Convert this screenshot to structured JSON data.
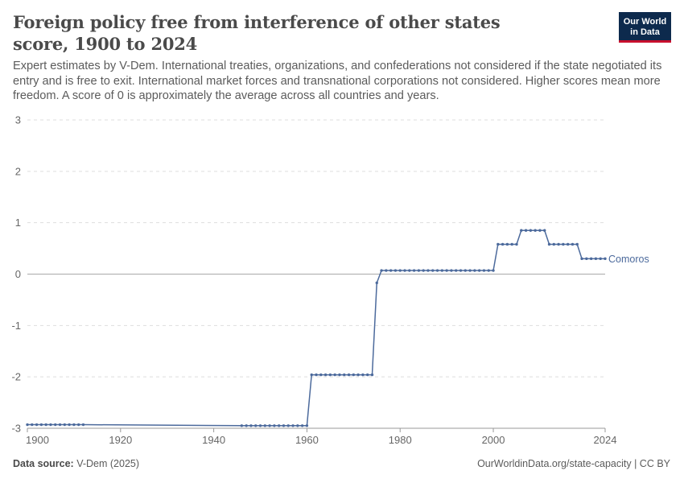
{
  "header": {
    "title": "Foreign policy free from interference of other states score, 1900 to 2024",
    "subtitle": "Expert estimates by V-Dem. International treaties, organizations, and confederations not considered if the state negotiated its entry and is free to exit. International market forces and transnational corporations not considered. Higher scores mean more freedom. A score of 0 is approximately the average across all countries and years.",
    "logo_line1": "Our World",
    "logo_line2": "in Data"
  },
  "footer": {
    "source_label": "Data source:",
    "source_value": "V-Dem (2025)",
    "link": "OurWorldinData.org/state-capacity | CC BY"
  },
  "colors": {
    "series": "#4c6a9c",
    "grid": "#dddddd",
    "zero_line": "#a8a8a8",
    "axis_text": "#666666",
    "logo_bg": "#0d2a4d",
    "logo_accent": "#c8102e"
  },
  "chart_data": {
    "type": "line",
    "title": "Foreign policy free from interference of other states score, 1900 to 2024",
    "xlabel": "",
    "ylabel": "",
    "xlim": [
      1900,
      2024
    ],
    "ylim": [
      -3,
      3
    ],
    "x_ticks": [
      1900,
      1920,
      1940,
      1960,
      1980,
      2000,
      2024
    ],
    "y_ticks": [
      3,
      2,
      1,
      0,
      -1,
      -2,
      -3
    ],
    "grid": true,
    "legend": "inline-right",
    "series": [
      {
        "name": "Comoros",
        "color": "#4c6a9c",
        "points": [
          [
            1900,
            -2.93
          ],
          [
            1901,
            -2.93
          ],
          [
            1902,
            -2.93
          ],
          [
            1903,
            -2.93
          ],
          [
            1904,
            -2.93
          ],
          [
            1905,
            -2.93
          ],
          [
            1906,
            -2.93
          ],
          [
            1907,
            -2.93
          ],
          [
            1908,
            -2.93
          ],
          [
            1909,
            -2.93
          ],
          [
            1910,
            -2.93
          ],
          [
            1911,
            -2.93
          ],
          [
            1912,
            -2.93
          ],
          [
            1946,
            -2.95
          ],
          [
            1947,
            -2.95
          ],
          [
            1948,
            -2.95
          ],
          [
            1949,
            -2.95
          ],
          [
            1950,
            -2.95
          ],
          [
            1951,
            -2.95
          ],
          [
            1952,
            -2.95
          ],
          [
            1953,
            -2.95
          ],
          [
            1954,
            -2.95
          ],
          [
            1955,
            -2.95
          ],
          [
            1956,
            -2.95
          ],
          [
            1957,
            -2.95
          ],
          [
            1958,
            -2.95
          ],
          [
            1959,
            -2.95
          ],
          [
            1960,
            -2.95
          ],
          [
            1961,
            -1.96
          ],
          [
            1962,
            -1.96
          ],
          [
            1963,
            -1.96
          ],
          [
            1964,
            -1.96
          ],
          [
            1965,
            -1.96
          ],
          [
            1966,
            -1.96
          ],
          [
            1967,
            -1.96
          ],
          [
            1968,
            -1.96
          ],
          [
            1969,
            -1.96
          ],
          [
            1970,
            -1.96
          ],
          [
            1971,
            -1.96
          ],
          [
            1972,
            -1.96
          ],
          [
            1973,
            -1.96
          ],
          [
            1974,
            -1.96
          ],
          [
            1975,
            -0.17
          ],
          [
            1976,
            0.07
          ],
          [
            1977,
            0.07
          ],
          [
            1978,
            0.07
          ],
          [
            1979,
            0.07
          ],
          [
            1980,
            0.07
          ],
          [
            1981,
            0.07
          ],
          [
            1982,
            0.07
          ],
          [
            1983,
            0.07
          ],
          [
            1984,
            0.07
          ],
          [
            1985,
            0.07
          ],
          [
            1986,
            0.07
          ],
          [
            1987,
            0.07
          ],
          [
            1988,
            0.07
          ],
          [
            1989,
            0.07
          ],
          [
            1990,
            0.07
          ],
          [
            1991,
            0.07
          ],
          [
            1992,
            0.07
          ],
          [
            1993,
            0.07
          ],
          [
            1994,
            0.07
          ],
          [
            1995,
            0.07
          ],
          [
            1996,
            0.07
          ],
          [
            1997,
            0.07
          ],
          [
            1998,
            0.07
          ],
          [
            1999,
            0.07
          ],
          [
            2000,
            0.07
          ],
          [
            2001,
            0.58
          ],
          [
            2002,
            0.58
          ],
          [
            2003,
            0.58
          ],
          [
            2004,
            0.58
          ],
          [
            2005,
            0.58
          ],
          [
            2006,
            0.85
          ],
          [
            2007,
            0.85
          ],
          [
            2008,
            0.85
          ],
          [
            2009,
            0.85
          ],
          [
            2010,
            0.85
          ],
          [
            2011,
            0.85
          ],
          [
            2012,
            0.58
          ],
          [
            2013,
            0.58
          ],
          [
            2014,
            0.58
          ],
          [
            2015,
            0.58
          ],
          [
            2016,
            0.58
          ],
          [
            2017,
            0.58
          ],
          [
            2018,
            0.58
          ],
          [
            2019,
            0.3
          ],
          [
            2020,
            0.3
          ],
          [
            2021,
            0.3
          ],
          [
            2022,
            0.3
          ],
          [
            2023,
            0.3
          ],
          [
            2024,
            0.3
          ]
        ]
      }
    ]
  }
}
